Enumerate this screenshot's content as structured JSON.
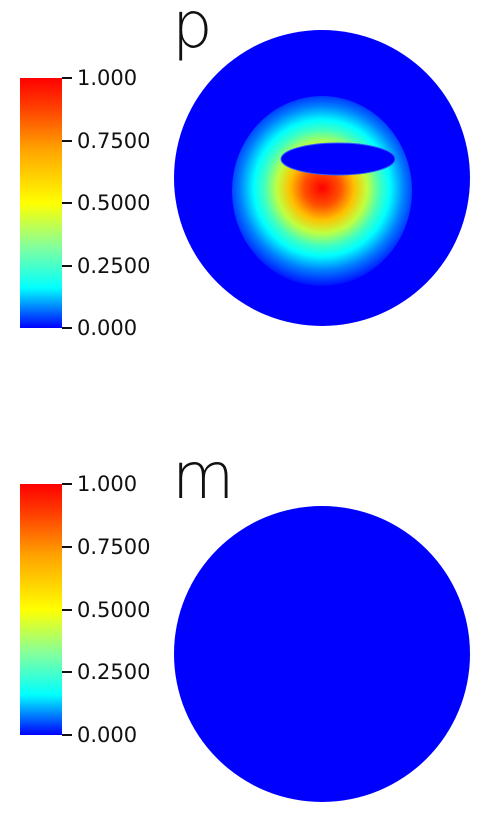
{
  "panels": [
    {
      "label": "p",
      "colorbar": {
        "min": 0.0,
        "max": 1.0,
        "ticks": [
          {
            "value": 1.0,
            "label": "1.000"
          },
          {
            "value": 0.75,
            "label": "0.7500"
          },
          {
            "value": 0.5,
            "label": "0.5000"
          },
          {
            "value": 0.25,
            "label": "0.2500"
          },
          {
            "value": 0.0,
            "label": "0.000"
          }
        ]
      },
      "field": "blob"
    },
    {
      "label": "m",
      "colorbar": {
        "min": 0.0,
        "max": 1.0,
        "ticks": [
          {
            "value": 1.0,
            "label": "1.000"
          },
          {
            "value": 0.75,
            "label": "0.7500"
          },
          {
            "value": 0.5,
            "label": "0.5000"
          },
          {
            "value": 0.25,
            "label": "0.2500"
          },
          {
            "value": 0.0,
            "label": "0.000"
          }
        ]
      },
      "field": "uniform"
    }
  ],
  "colors": {
    "background": "#ffffff",
    "disk": "#0000ff"
  }
}
